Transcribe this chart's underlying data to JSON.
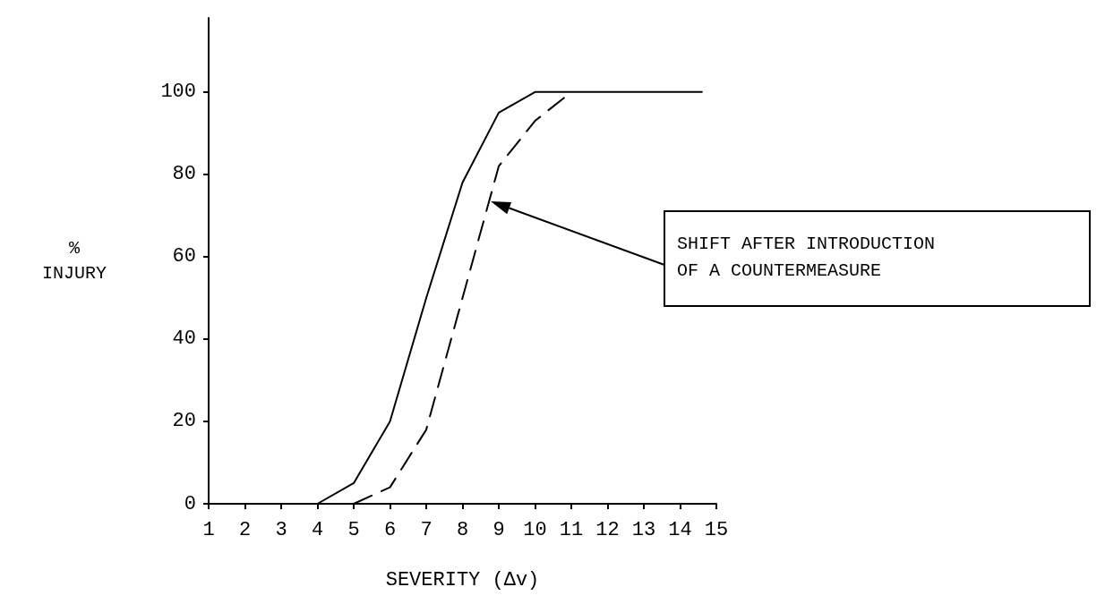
{
  "chart_data": {
    "type": "line",
    "xlabel": "SEVERITY (Δv)",
    "ylabel": "%\nINJURY",
    "xlim": [
      1,
      15
    ],
    "xticks": [
      1,
      2,
      3,
      4,
      5,
      6,
      7,
      8,
      9,
      10,
      11,
      12,
      13,
      14,
      15
    ],
    "ylim": [
      0,
      118
    ],
    "yticks": [
      0,
      20,
      40,
      60,
      80,
      100
    ],
    "grid": false,
    "marker": "none",
    "series": [
      {
        "color": "#000000",
        "line_style": "solid",
        "x": [
          1,
          4,
          5,
          6,
          7,
          8,
          9,
          10,
          14.6
        ],
        "values": [
          0,
          0,
          5,
          20,
          50,
          78,
          95,
          100,
          100
        ]
      },
      {
        "color": "#000000",
        "line_style": "dashed",
        "x": [
          5,
          6,
          7,
          8,
          9,
          10,
          11
        ],
        "values": [
          0,
          4,
          18,
          50,
          82,
          93,
          100
        ]
      }
    ],
    "annotations": [
      "SHIFT AFTER INTRODUCTION\nOF A COUNTERMEASURE"
    ]
  }
}
